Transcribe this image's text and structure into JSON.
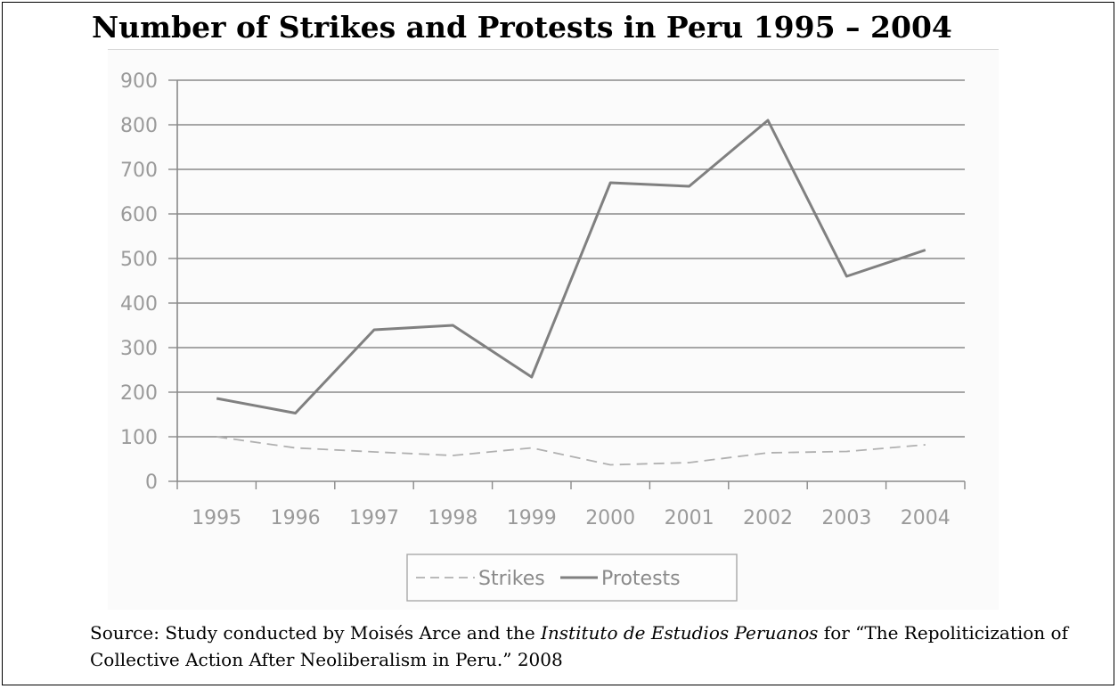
{
  "page": {
    "title": "Number of Strikes and Protests in Peru 1995 – 2004",
    "source_prefix": "Source: Study conducted by Moisés Arce and the ",
    "source_italic": "Instituto de Estudios Peruanos",
    "source_suffix": " for “The Repoliticization of Collective Action After Neoliberalism in Peru.” 2008"
  },
  "chart_data": {
    "type": "line",
    "title": "Number of Strikes and Protests in Peru 1995 – 2004",
    "xlabel": "",
    "ylabel": "",
    "categories": [
      "1995",
      "1996",
      "1997",
      "1998",
      "1999",
      "2000",
      "2001",
      "2002",
      "2003",
      "2004"
    ],
    "ylim": [
      0,
      900
    ],
    "yticks": [
      0,
      100,
      200,
      300,
      400,
      500,
      600,
      700,
      800,
      900
    ],
    "grid": true,
    "legend_position": "bottom-center",
    "series": [
      {
        "name": "Strikes",
        "style": "dashed",
        "color": "#b0b0b0",
        "values": [
          100,
          75,
          66,
          58,
          75,
          37,
          42,
          64,
          67,
          82
        ]
      },
      {
        "name": "Protests",
        "style": "solid",
        "color": "#808080",
        "values": [
          186,
          153,
          340,
          350,
          234,
          670,
          662,
          810,
          460,
          519
        ]
      }
    ]
  }
}
